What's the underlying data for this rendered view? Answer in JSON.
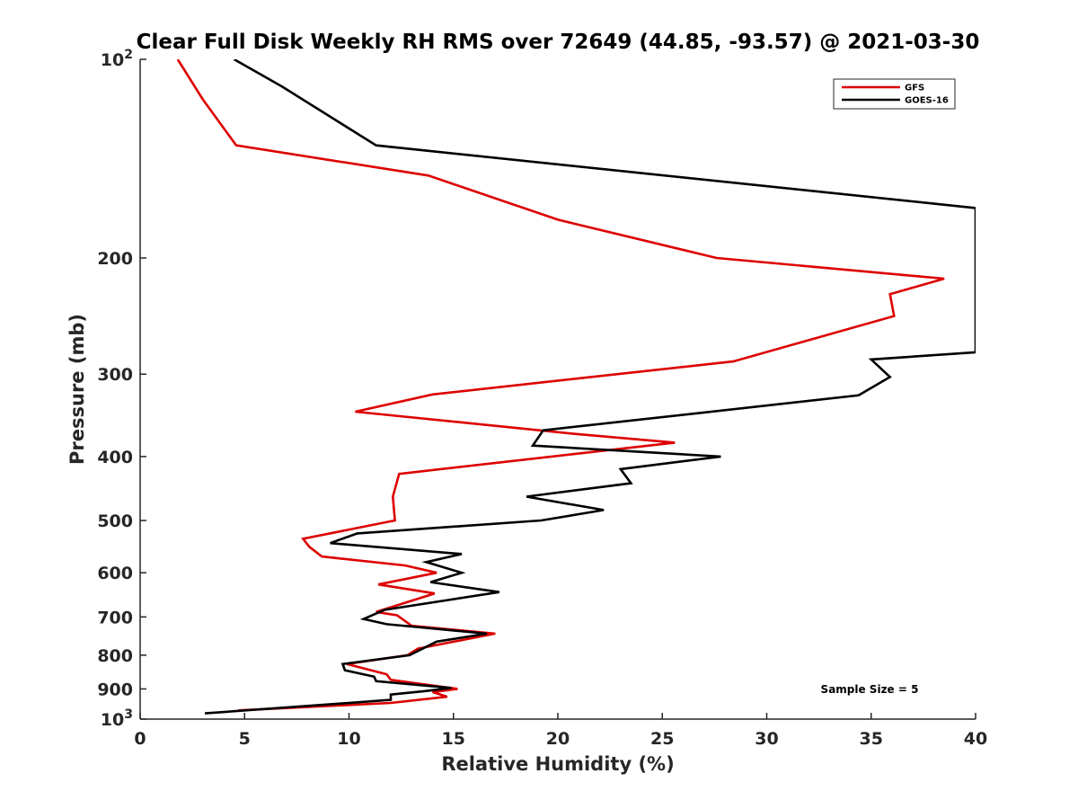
{
  "chart_data": {
    "type": "line",
    "title": "Clear Full Disk Weekly RH RMS over 72649 (44.85, -93.57) @ 2021-03-30",
    "xlabel": "Relative Humidity (%)",
    "ylabel": "Pressure (mb)",
    "xlim": [
      0,
      40
    ],
    "ylim": [
      100,
      1000
    ],
    "y_scale": "log",
    "y_reversed": true,
    "x_ticks": [
      0,
      5,
      10,
      15,
      20,
      25,
      30,
      35,
      40
    ],
    "y_ticks": [
      {
        "value": 100,
        "label": "10",
        "sup": "2"
      },
      {
        "value": 200,
        "label": "200",
        "sup": ""
      },
      {
        "value": 300,
        "label": "300",
        "sup": ""
      },
      {
        "value": 400,
        "label": "400",
        "sup": ""
      },
      {
        "value": 500,
        "label": "500",
        "sup": ""
      },
      {
        "value": 600,
        "label": "600",
        "sup": ""
      },
      {
        "value": 700,
        "label": "700",
        "sup": ""
      },
      {
        "value": 800,
        "label": "800",
        "sup": ""
      },
      {
        "value": 900,
        "label": "900",
        "sup": ""
      },
      {
        "value": 1000,
        "label": "10",
        "sup": "3"
      }
    ],
    "grid": false,
    "legend_position": "top-right",
    "annotation": "Sample Size = 5",
    "series": [
      {
        "name": "GFS",
        "color": "#dd0000",
        "points": [
          [
            1.8,
            100
          ],
          [
            3.0,
            115
          ],
          [
            4.6,
            135
          ],
          [
            13.8,
            150
          ],
          [
            20.0,
            175
          ],
          [
            27.6,
            200
          ],
          [
            38.5,
            215
          ],
          [
            35.9,
            227
          ],
          [
            36.1,
            245
          ],
          [
            28.4,
            287
          ],
          [
            14.0,
            322
          ],
          [
            10.3,
            342
          ],
          [
            21.0,
            370
          ],
          [
            25.6,
            381
          ],
          [
            12.4,
            425
          ],
          [
            12.1,
            460
          ],
          [
            12.2,
            500
          ],
          [
            7.8,
            533
          ],
          [
            8.1,
            548
          ],
          [
            8.7,
            567
          ],
          [
            12.7,
            585
          ],
          [
            14.2,
            600
          ],
          [
            11.4,
            625
          ],
          [
            14.1,
            645
          ],
          [
            11.3,
            688
          ],
          [
            12.3,
            696
          ],
          [
            13.0,
            722
          ],
          [
            17.0,
            742
          ],
          [
            13.3,
            782
          ],
          [
            12.8,
            800
          ],
          [
            9.9,
            825
          ],
          [
            11.8,
            855
          ],
          [
            12.0,
            872
          ],
          [
            15.2,
            900
          ],
          [
            14.0,
            910
          ],
          [
            14.7,
            925
          ],
          [
            12.0,
            945
          ],
          [
            4.7,
            970
          ]
        ]
      },
      {
        "name": "GOES-16",
        "color": "#000000",
        "points": [
          [
            4.5,
            100
          ],
          [
            6.8,
            110
          ],
          [
            11.3,
            135
          ],
          [
            40.0,
            168
          ],
          [
            40.0,
            278
          ],
          [
            35.0,
            285
          ],
          [
            35.9,
            303
          ],
          [
            34.4,
            323
          ],
          [
            19.3,
            365
          ],
          [
            18.8,
            385
          ],
          [
            27.8,
            400
          ],
          [
            23.0,
            418
          ],
          [
            23.5,
            439
          ],
          [
            18.5,
            460
          ],
          [
            22.2,
            482
          ],
          [
            19.2,
            500
          ],
          [
            10.4,
            523
          ],
          [
            9.1,
            541
          ],
          [
            15.4,
            562
          ],
          [
            13.7,
            578
          ],
          [
            15.4,
            600
          ],
          [
            13.9,
            620
          ],
          [
            17.2,
            642
          ],
          [
            11.7,
            683
          ],
          [
            10.7,
            705
          ],
          [
            11.8,
            718
          ],
          [
            16.6,
            742
          ],
          [
            14.2,
            763
          ],
          [
            12.9,
            800
          ],
          [
            9.7,
            825
          ],
          [
            9.8,
            843
          ],
          [
            11.2,
            862
          ],
          [
            11.3,
            876
          ],
          [
            14.9,
            897
          ],
          [
            13.6,
            907
          ],
          [
            12.0,
            918
          ],
          [
            12.0,
            935
          ],
          [
            3.1,
            980
          ]
        ]
      }
    ]
  }
}
